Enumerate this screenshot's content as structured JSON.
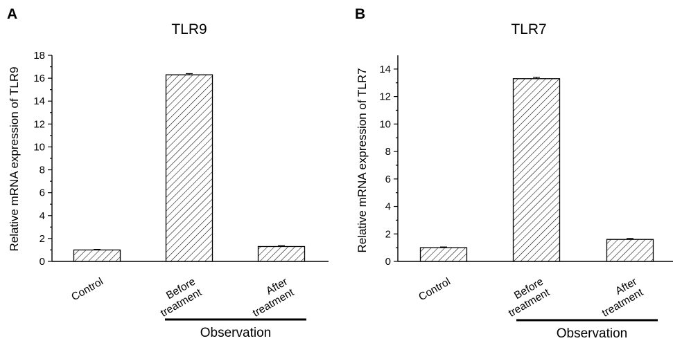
{
  "chart_data": [
    {
      "panel": "A",
      "type": "bar",
      "title": "TLR9",
      "ylabel": "Relative mRNA expression of TLR9",
      "ylim": [
        0,
        18
      ],
      "yticks": [
        0,
        2,
        4,
        6,
        8,
        10,
        12,
        14,
        16,
        18
      ],
      "categories": [
        [
          "Control"
        ],
        [
          "Before",
          "treatment"
        ],
        [
          "After",
          "treatment"
        ]
      ],
      "values": [
        1.0,
        16.3,
        1.3
      ],
      "errors": [
        0.05,
        0.1,
        0.07
      ],
      "group_label": "Observation",
      "group_categories": [
        1,
        2
      ]
    },
    {
      "panel": "B",
      "type": "bar",
      "title": "TLR7",
      "ylabel": "Relative mRNA expression of TLR7",
      "ylim": [
        0,
        15
      ],
      "yticks": [
        0,
        2,
        4,
        6,
        8,
        10,
        12,
        14
      ],
      "categories": [
        [
          "Control"
        ],
        [
          "Before",
          "treatment"
        ],
        [
          "After",
          "treatment"
        ]
      ],
      "values": [
        1.0,
        13.3,
        1.6
      ],
      "errors": [
        0.05,
        0.1,
        0.07
      ],
      "group_label": "Observation",
      "group_categories": [
        1,
        2
      ]
    }
  ],
  "colors": {
    "bar_fill": "#ffffff",
    "hatch": "#000000",
    "axis": "#000000"
  }
}
